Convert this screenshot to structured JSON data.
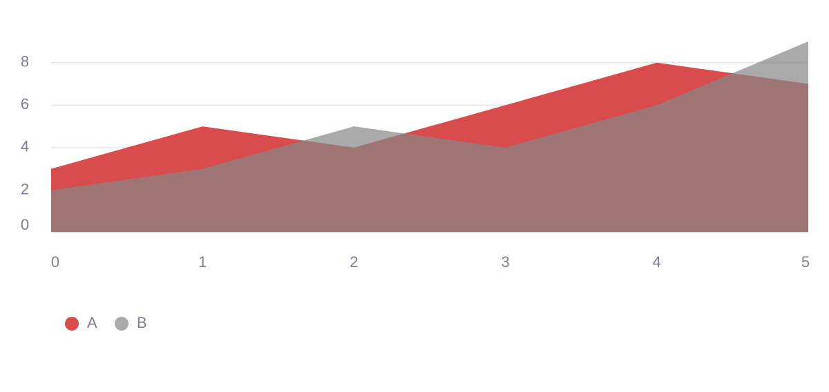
{
  "chart_data": {
    "type": "area",
    "x": [
      0,
      1,
      2,
      3,
      4,
      5
    ],
    "series": [
      {
        "name": "A",
        "color": "#d94c4e",
        "values": [
          3,
          5,
          4,
          6,
          8,
          7
        ]
      },
      {
        "name": "B",
        "color": "#868686",
        "values": [
          2,
          3,
          5,
          4,
          6,
          9
        ]
      }
    ],
    "xlim": [
      0,
      5
    ],
    "xticks": [
      0,
      1,
      2,
      3,
      4,
      5
    ],
    "ylim": [
      0,
      9
    ],
    "yticks": [
      0,
      2,
      4,
      6,
      8
    ],
    "grid": true,
    "legend": "bottom-left"
  }
}
